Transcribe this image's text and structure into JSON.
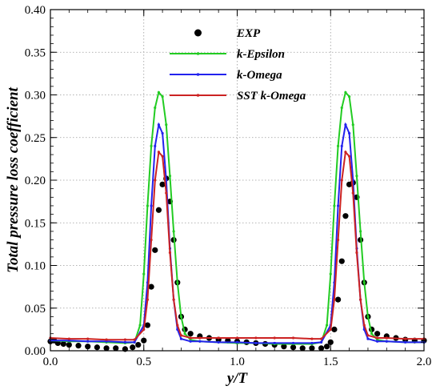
{
  "chart_data": {
    "type": "line",
    "xlabel": "y/T",
    "ylabel": "Total pressure loss coefficient",
    "xlim": [
      0.0,
      2.0
    ],
    "ylim": [
      0.0,
      0.4
    ],
    "x_ticks": [
      "0.0",
      "0.5",
      "1.0",
      "1.5",
      "2.0"
    ],
    "y_ticks": [
      "0.00",
      "0.05",
      "0.10",
      "0.15",
      "0.20",
      "0.25",
      "0.30",
      "0.35",
      "0.40"
    ],
    "grid": true,
    "legend_position": "top-center",
    "series": [
      {
        "name": "EXP",
        "style": "markers",
        "color": "#000000",
        "x": [
          0.0,
          0.02,
          0.04,
          0.07,
          0.1,
          0.15,
          0.2,
          0.25,
          0.3,
          0.35,
          0.4,
          0.44,
          0.47,
          0.5,
          0.52,
          0.54,
          0.56,
          0.58,
          0.6,
          0.62,
          0.64,
          0.66,
          0.68,
          0.7,
          0.72,
          0.75,
          0.8,
          0.85,
          0.9,
          0.95,
          1.0,
          1.05,
          1.1,
          1.15,
          1.2,
          1.25,
          1.3,
          1.35,
          1.4,
          1.45,
          1.48,
          1.5,
          1.52,
          1.54,
          1.56,
          1.58,
          1.6,
          1.62,
          1.64,
          1.66,
          1.68,
          1.7,
          1.72,
          1.75,
          1.8,
          1.85,
          1.9,
          1.95,
          2.0
        ],
        "y": [
          0.011,
          0.012,
          0.009,
          0.008,
          0.007,
          0.006,
          0.005,
          0.004,
          0.003,
          0.003,
          0.002,
          0.004,
          0.007,
          0.012,
          0.03,
          0.075,
          0.118,
          0.165,
          0.195,
          0.202,
          0.175,
          0.13,
          0.08,
          0.04,
          0.025,
          0.02,
          0.017,
          0.015,
          0.013,
          0.012,
          0.011,
          0.01,
          0.009,
          0.008,
          0.007,
          0.005,
          0.004,
          0.003,
          0.003,
          0.003,
          0.005,
          0.01,
          0.025,
          0.06,
          0.105,
          0.158,
          0.195,
          0.197,
          0.18,
          0.13,
          0.08,
          0.04,
          0.025,
          0.02,
          0.017,
          0.015,
          0.013,
          0.012,
          0.012
        ]
      },
      {
        "name": "k-Epsilon",
        "color": "#22cc22",
        "x": [
          0.0,
          0.1,
          0.2,
          0.3,
          0.4,
          0.45,
          0.48,
          0.5,
          0.52,
          0.54,
          0.56,
          0.58,
          0.6,
          0.62,
          0.64,
          0.66,
          0.68,
          0.7,
          0.72,
          0.75,
          0.8,
          0.9,
          1.0,
          1.1,
          1.2,
          1.3,
          1.4,
          1.45,
          1.48,
          1.5,
          1.52,
          1.54,
          1.56,
          1.58,
          1.6,
          1.62,
          1.64,
          1.66,
          1.68,
          1.7,
          1.72,
          1.75,
          1.8,
          1.9,
          2.0
        ],
        "y": [
          0.012,
          0.011,
          0.011,
          0.01,
          0.009,
          0.01,
          0.03,
          0.09,
          0.17,
          0.24,
          0.285,
          0.303,
          0.298,
          0.265,
          0.205,
          0.14,
          0.08,
          0.04,
          0.02,
          0.013,
          0.011,
          0.01,
          0.009,
          0.009,
          0.008,
          0.008,
          0.008,
          0.01,
          0.03,
          0.09,
          0.17,
          0.24,
          0.285,
          0.303,
          0.298,
          0.265,
          0.205,
          0.14,
          0.08,
          0.04,
          0.02,
          0.013,
          0.011,
          0.01,
          0.01
        ]
      },
      {
        "name": "k-Omega",
        "color": "#2222ee",
        "x": [
          0.0,
          0.1,
          0.2,
          0.3,
          0.4,
          0.45,
          0.5,
          0.52,
          0.54,
          0.56,
          0.58,
          0.6,
          0.62,
          0.64,
          0.66,
          0.68,
          0.7,
          0.75,
          0.8,
          0.9,
          1.0,
          1.1,
          1.2,
          1.3,
          1.4,
          1.45,
          1.5,
          1.52,
          1.54,
          1.56,
          1.58,
          1.6,
          1.62,
          1.64,
          1.66,
          1.68,
          1.7,
          1.75,
          1.8,
          1.9,
          2.0
        ],
        "y": [
          0.012,
          0.012,
          0.011,
          0.011,
          0.01,
          0.01,
          0.03,
          0.08,
          0.17,
          0.24,
          0.265,
          0.255,
          0.2,
          0.12,
          0.06,
          0.025,
          0.014,
          0.011,
          0.011,
          0.01,
          0.01,
          0.009,
          0.009,
          0.009,
          0.009,
          0.01,
          0.03,
          0.08,
          0.17,
          0.24,
          0.265,
          0.255,
          0.2,
          0.12,
          0.06,
          0.025,
          0.014,
          0.011,
          0.011,
          0.01,
          0.01
        ]
      },
      {
        "name": "SST k-Omega",
        "color": "#cc2222",
        "x": [
          0.0,
          0.1,
          0.2,
          0.3,
          0.4,
          0.45,
          0.5,
          0.52,
          0.54,
          0.56,
          0.58,
          0.6,
          0.62,
          0.64,
          0.66,
          0.68,
          0.7,
          0.75,
          0.8,
          0.9,
          1.0,
          1.1,
          1.2,
          1.3,
          1.4,
          1.45,
          1.5,
          1.52,
          1.54,
          1.56,
          1.58,
          1.6,
          1.62,
          1.64,
          1.66,
          1.68,
          1.7,
          1.75,
          1.8,
          1.9,
          2.0
        ],
        "y": [
          0.015,
          0.014,
          0.014,
          0.013,
          0.013,
          0.013,
          0.025,
          0.06,
          0.13,
          0.2,
          0.233,
          0.228,
          0.185,
          0.115,
          0.06,
          0.03,
          0.018,
          0.015,
          0.015,
          0.015,
          0.015,
          0.015,
          0.015,
          0.015,
          0.014,
          0.014,
          0.025,
          0.06,
          0.13,
          0.2,
          0.233,
          0.228,
          0.185,
          0.115,
          0.06,
          0.03,
          0.018,
          0.015,
          0.015,
          0.014,
          0.014
        ]
      }
    ]
  }
}
